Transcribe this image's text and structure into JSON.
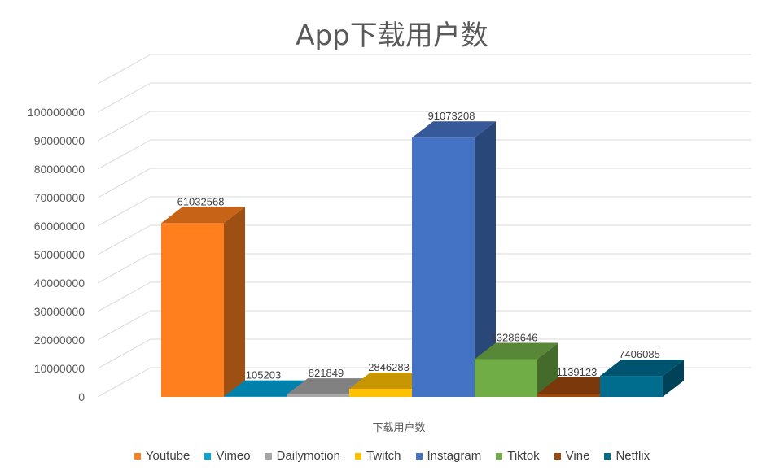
{
  "chart_data": {
    "type": "bar",
    "title": "App下载用户数",
    "xlabel": "下载用户数",
    "ylabel": "",
    "ylim": [
      0,
      100000000
    ],
    "y_ticks": [
      0,
      10000000,
      20000000,
      30000000,
      40000000,
      50000000,
      60000000,
      70000000,
      80000000,
      90000000,
      100000000
    ],
    "grid": true,
    "legend_position": "bottom",
    "categories": [
      "下载用户数"
    ],
    "series": [
      {
        "name": "Youtube",
        "values": [
          61032568
        ],
        "color": "#FF7F1E"
      },
      {
        "name": "Vimeo",
        "values": [
          105203
        ],
        "color": "#00A6DD"
      },
      {
        "name": "Dailymotion",
        "values": [
          821849
        ],
        "color": "#A6A6A6"
      },
      {
        "name": "Twitch",
        "values": [
          2846283
        ],
        "color": "#FFC000"
      },
      {
        "name": "Instagram",
        "values": [
          91073208
        ],
        "color": "#4472C4"
      },
      {
        "name": "Tiktok",
        "values": [
          13286646
        ],
        "color": "#70AD47"
      },
      {
        "name": "Vine",
        "values": [
          1139123
        ],
        "color": "#9E480E"
      },
      {
        "name": "Netflix",
        "values": [
          7406085
        ],
        "color": "#006C8E"
      }
    ]
  }
}
